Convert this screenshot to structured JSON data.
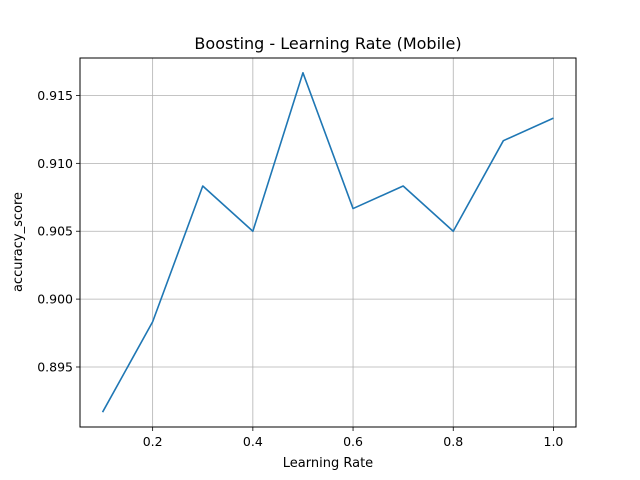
{
  "chart_data": {
    "type": "line",
    "title": "Boosting - Learning Rate (Mobile)",
    "xlabel": "Learning Rate",
    "ylabel": "accuracy_score",
    "x": [
      0.1,
      0.2,
      0.3,
      0.4,
      0.5,
      0.6,
      0.7,
      0.8,
      0.9,
      1.0
    ],
    "series": [
      {
        "values": [
          0.89167,
          0.89833,
          0.90833,
          0.905,
          0.91667,
          0.90667,
          0.90833,
          0.905,
          0.91167,
          0.91333
        ],
        "color": "#1f77b4"
      }
    ],
    "xlim": [
      0.055,
      1.045
    ],
    "ylim": [
      0.89058,
      0.91776
    ],
    "xticks": [
      0.2,
      0.4,
      0.6,
      0.8,
      1.0
    ],
    "xtick_labels": [
      "0.2",
      "0.4",
      "0.6",
      "0.8",
      "1.0"
    ],
    "yticks": [
      0.895,
      0.9,
      0.905,
      0.91,
      0.915
    ],
    "ytick_labels": [
      "0.895",
      "0.900",
      "0.905",
      "0.910",
      "0.915"
    ],
    "grid": true,
    "grid_color": "#b0b0b0",
    "legend": "none"
  }
}
